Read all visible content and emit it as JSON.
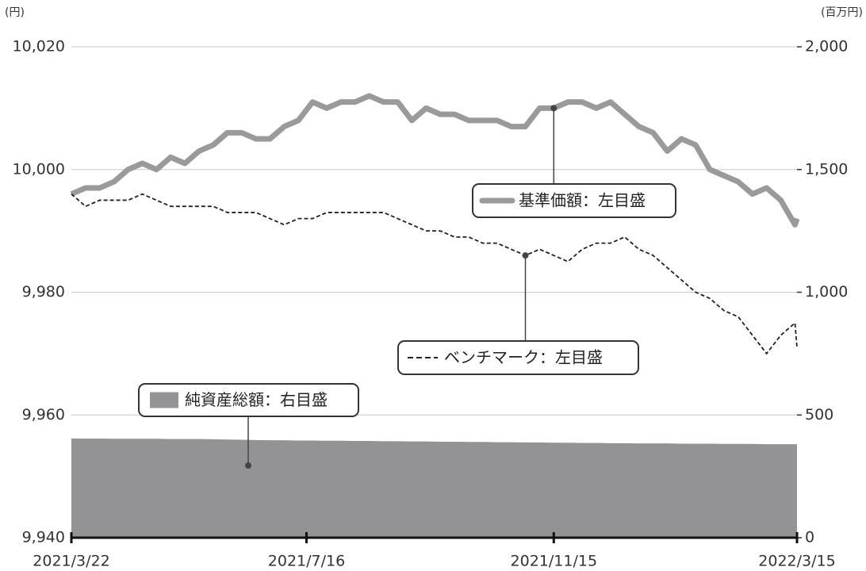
{
  "chart_data": {
    "type": "line",
    "y_label": "(円)",
    "y2_label": "(百万円)",
    "x": [
      "2021/3/22",
      "2021/3/29",
      "2021/4/5",
      "2021/4/12",
      "2021/4/19",
      "2021/4/26",
      "2021/5/3",
      "2021/5/10",
      "2021/5/17",
      "2021/5/24",
      "2021/5/31",
      "2021/6/7",
      "2021/6/14",
      "2021/6/21",
      "2021/6/28",
      "2021/7/5",
      "2021/7/12",
      "2021/7/19",
      "2021/7/26",
      "2021/8/2",
      "2021/8/9",
      "2021/8/16",
      "2021/8/23",
      "2021/8/30",
      "2021/9/6",
      "2021/9/13",
      "2021/9/20",
      "2021/9/27",
      "2021/10/4",
      "2021/10/11",
      "2021/10/18",
      "2021/10/25",
      "2021/11/1",
      "2021/11/8",
      "2021/11/15",
      "2021/11/22",
      "2021/11/29",
      "2021/12/6",
      "2021/12/13",
      "2021/12/20",
      "2021/12/27",
      "2022/1/3",
      "2022/1/10",
      "2022/1/17",
      "2022/1/24",
      "2022/1/31",
      "2022/2/7",
      "2022/2/14",
      "2022/2/21",
      "2022/2/28",
      "2022/3/7",
      "2022/3/14",
      "2022/3/15"
    ],
    "xlim": [
      "2021/3/22",
      "2022/3/15"
    ],
    "xticks": [
      "2021/3/22",
      "2021/7/16",
      "2021/11/15",
      "2022/3/15"
    ],
    "ylim": [
      9940,
      10020
    ],
    "yticks": [
      {
        "value": 9940,
        "label": "9,940"
      },
      {
        "value": 9960,
        "label": "9,960"
      },
      {
        "value": 9980,
        "label": "9,980"
      },
      {
        "value": 10000,
        "label": "10,000"
      },
      {
        "value": 10020,
        "label": "10,020"
      }
    ],
    "y2lim": [
      0,
      2000
    ],
    "y2ticks": [
      0,
      500,
      {
        "value": 1000,
        "label": "1,000"
      },
      {
        "value": 1500,
        "label": "1,500"
      },
      {
        "value": 2000,
        "label": "2,000"
      }
    ],
    "grid": true,
    "series": [
      {
        "name": "純資産総額：右目盛",
        "type": "area",
        "axis": "y2",
        "color": "#939395",
        "values": [
          404,
          404,
          404,
          403,
          403,
          403,
          403,
          402,
          402,
          402,
          401,
          400,
          399,
          398,
          397,
          397,
          396,
          396,
          395,
          395,
          394,
          394,
          393,
          393,
          392,
          392,
          391,
          391,
          390,
          390,
          389,
          389,
          388,
          388,
          387,
          387,
          386,
          386,
          385,
          385,
          384,
          384,
          384,
          383,
          383,
          383,
          382,
          382,
          382,
          381,
          381,
          381,
          381
        ]
      },
      {
        "name": "基準価額：左目盛",
        "type": "line",
        "color": "#9a9a9a",
        "values": [
          9996,
          9997,
          9997,
          9998,
          10000,
          10001,
          10000,
          10002,
          10001,
          10003,
          10004,
          10006,
          10006,
          10005,
          10005,
          10007,
          10008,
          10011,
          10010,
          10011,
          10011,
          10012,
          10011,
          10011,
          10008,
          10010,
          10009,
          10009,
          10008,
          10008,
          10008,
          10007,
          10007,
          10010,
          10010,
          10011,
          10011,
          10010,
          10011,
          10009,
          10007,
          10006,
          10003,
          10005,
          10004,
          10000,
          9999,
          9998,
          9996,
          9997,
          9995,
          9991,
          9992
        ]
      },
      {
        "name": "ベンチマーク：左目盛",
        "type": "dashed-line",
        "color": "#222222",
        "values": [
          9996,
          9994,
          9995,
          9995,
          9995,
          9996,
          9995,
          9994,
          9994,
          9994,
          9994,
          9993,
          9993,
          9993,
          9992,
          9991,
          9992,
          9992,
          9993,
          9993,
          9993,
          9993,
          9993,
          9992,
          9991,
          9990,
          9990,
          9989,
          9989,
          9988,
          9988,
          9987,
          9986,
          9987,
          9986,
          9985,
          9987,
          9988,
          9988,
          9989,
          9987,
          9986,
          9984,
          9982,
          9980,
          9979,
          9977,
          9976,
          9973,
          9970,
          9973,
          9975,
          9971
        ]
      }
    ]
  }
}
